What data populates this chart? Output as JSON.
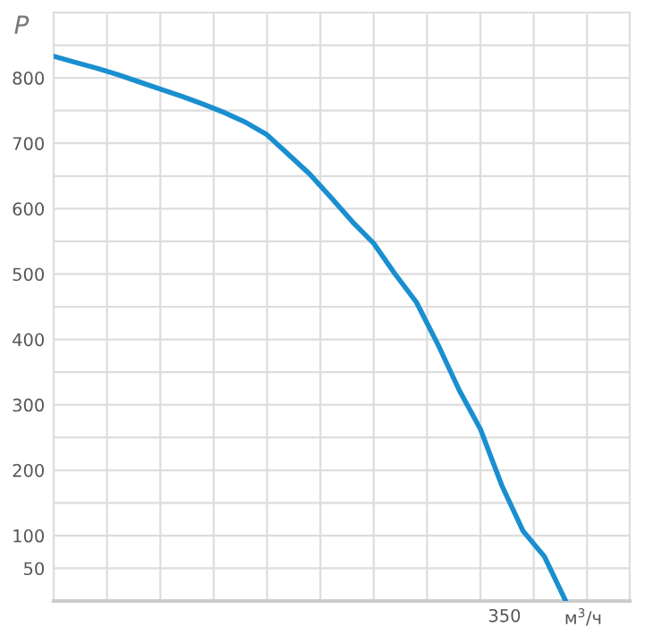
{
  "chart_data": {
    "type": "line",
    "ylabel": "P",
    "xlabel": "м$^{3}$/ч",
    "annotations": [
      "350"
    ],
    "categories": [
      null,
      null,
      null,
      null,
      null,
      null,
      null,
      null,
      null,
      null,
      null,
      null,
      null,
      null,
      null,
      null,
      null,
      null,
      null,
      null,
      null,
      null,
      null,
      null,
      null,
      null,
      null,
      null
    ],
    "series": [
      {
        "color": "#1a8fd0",
        "values": [
          833,
          824,
          815,
          805,
          794,
          783,
          772,
          760,
          747,
          732,
          713,
          683,
          653,
          617,
          580,
          547,
          500,
          457,
          393,
          323,
          263,
          177,
          107,
          68,
          0,
          null,
          null,
          null
        ]
      }
    ],
    "ylim": [
      0,
      900
    ],
    "yticks": [
      50,
      100,
      200,
      300,
      400,
      500,
      600,
      700,
      800
    ],
    "grid": true,
    "marker": "none",
    "line_style": "solid"
  }
}
